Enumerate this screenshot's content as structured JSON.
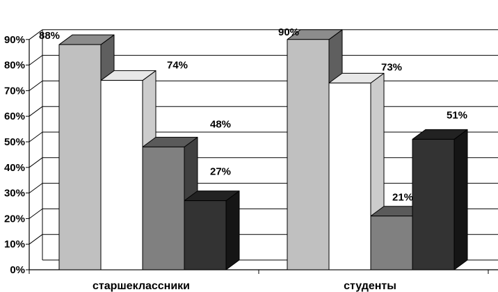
{
  "chart_data": {
    "type": "bar",
    "categories": [
      "старшеклассники",
      "студенты"
    ],
    "series": [
      {
        "values": [
          88,
          90
        ],
        "colors": {
          "front": "#c0c0c0",
          "top": "#8c8c8c",
          "side": "#5f5f5f"
        }
      },
      {
        "values": [
          74,
          73
        ],
        "colors": {
          "front": "#ffffff",
          "top": "#e8e8e8",
          "side": "#cccccc"
        }
      },
      {
        "values": [
          48,
          21
        ],
        "colors": {
          "front": "#808080",
          "top": "#5a5a5a",
          "side": "#404040"
        }
      },
      {
        "values": [
          27,
          51
        ],
        "colors": {
          "front": "#333333",
          "top": "#222222",
          "side": "#151515"
        }
      }
    ],
    "data_labels": [
      [
        "88%",
        "90%"
      ],
      [
        "74%",
        "73%"
      ],
      [
        "48%",
        "21%"
      ],
      [
        "27%",
        "51%"
      ]
    ],
    "y_ticks": [
      "0%",
      "10%",
      "20%",
      "30%",
      "40%",
      "50%",
      "60%",
      "70%",
      "80%",
      "90%"
    ],
    "ylim": [
      0,
      90
    ],
    "grid": true,
    "legend": "none",
    "style": "3d-clustered-column"
  }
}
